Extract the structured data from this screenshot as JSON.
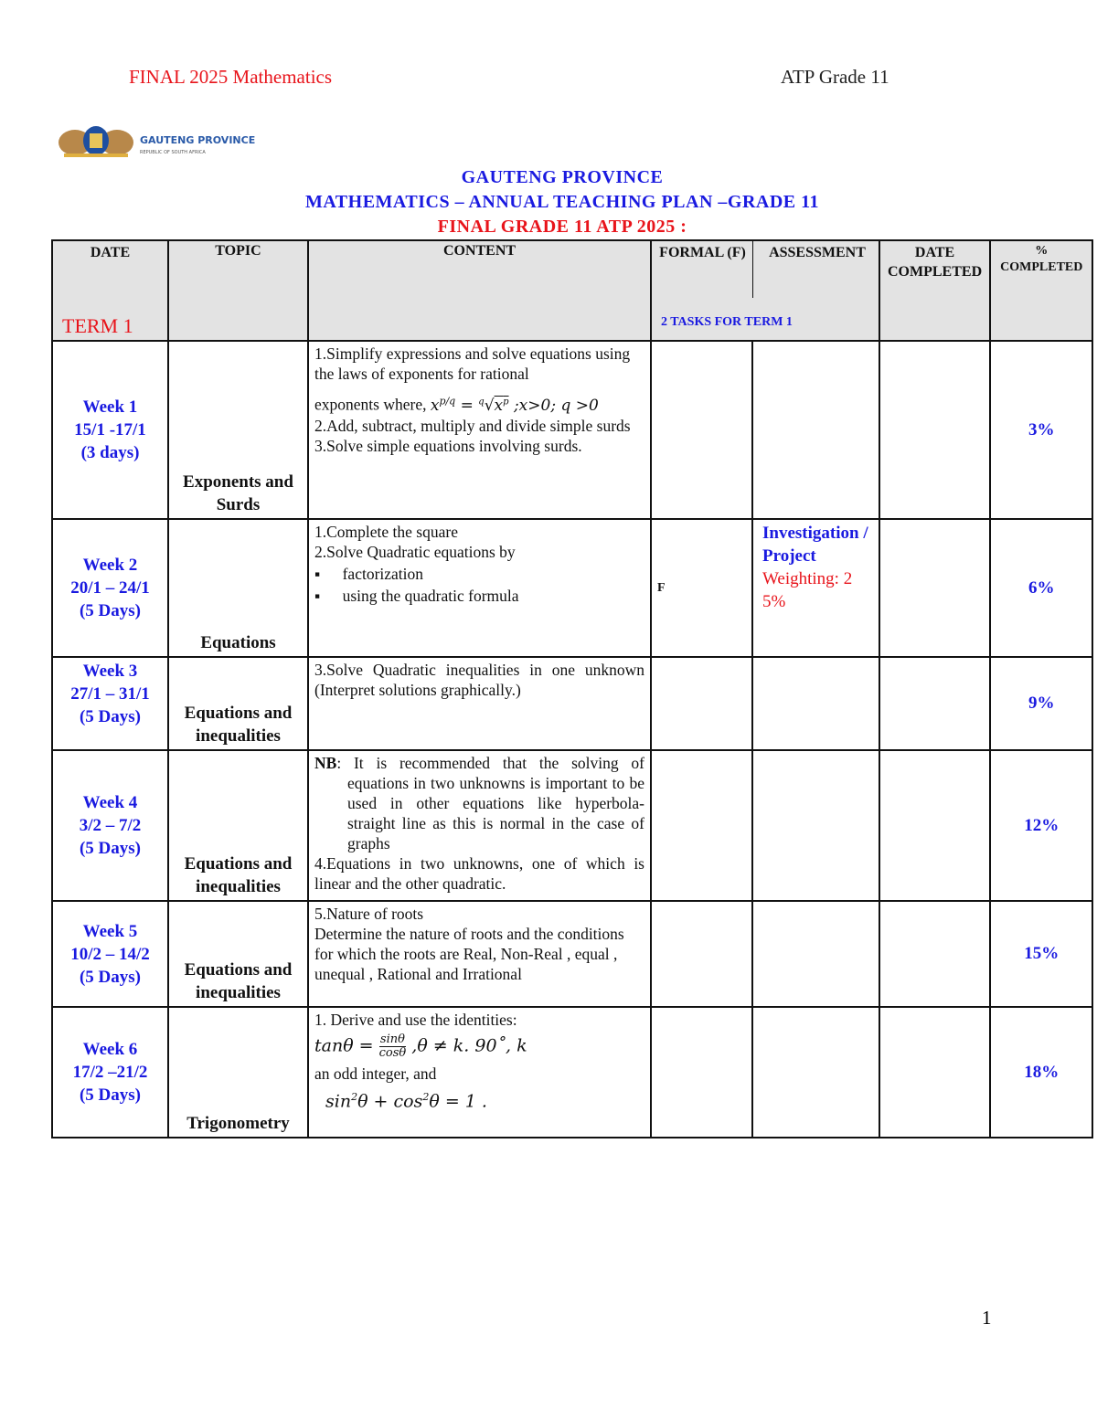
{
  "header": {
    "left": "FINAL  2025 Mathematics",
    "right": "ATP Grade 11"
  },
  "logo": {
    "text": "GAUTENG PROVINCE",
    "sub1": "EDUCATION",
    "sub2": "REPUBLIC OF SOUTH AFRICA"
  },
  "titles": {
    "line1": "GAUTENG  PROVINCE",
    "line2": "MATHEMATICS – ANNUAL TEACHING PLAN –GRADE 11",
    "line3": "FINAL GRADE 11 ATP 2025 :"
  },
  "colors": {
    "red": "#e8141b",
    "blue": "#1a1ae0",
    "header_bg": "#e3e3e3"
  },
  "table": {
    "headers": {
      "date": "DATE",
      "topic": "TOPIC",
      "content": "CONTENT",
      "formal": "FORMAL (F)",
      "assessment": "ASSESSMENT",
      "date_completed": "DATE COMPLETED",
      "pct": "% COMPLETED"
    },
    "term": "TERM  1",
    "tasks": "2 TASKS FOR TERM 1",
    "rows": [
      {
        "week": "Week 1",
        "dates": "15/1  -17/1",
        "days": "(3 days)",
        "topic": "Exponents and Surds",
        "content": [
          "1.Simplify expressions and solve equations using the laws of exponents for rational",
          "exponents  where,",
          "2.Add, subtract, multiply and divide simple surds",
          "3.Solve simple equations involving surds."
        ],
        "pct": "3%"
      },
      {
        "week": "Week 2",
        "dates": "20/1 – 24/1",
        "days": "(5 Days)",
        "topic": "Equations",
        "content": [
          "1.Complete the square",
          "2.Solve Quadratic equations by"
        ],
        "bullets": [
          "factorization",
          "using the quadratic formula"
        ],
        "formal": "F",
        "assessment": "Investigation / Project",
        "weighting": "Weighting: 25%",
        "pct": "6%"
      },
      {
        "week": "Week 3",
        "dates": "27/1 – 31/1",
        "days": "(5 Days)",
        "topic": "Equations and inequalities",
        "content": [
          "3.Solve  Quadratic  inequalities  in  one unknown (Interpret solutions graphically.)"
        ],
        "pct": "9%"
      },
      {
        "week": "Week 4",
        "dates": "3/2 – 7/2",
        "days": "(5 Days)",
        "topic": "Equations and inequalities",
        "nb": "NB",
        "content": [
          ": It is recommended that the solving of equations in two unknowns is important to be used in other equations like hyperbola-straight line as this is normal in the case of graphs",
          "4.Equations in two unknowns, one of which is linear and the other quadratic."
        ],
        "pct": "12%"
      },
      {
        "week": "Week 5",
        "dates": "10/2 – 14/2",
        "days": "(5 Days)",
        "topic": "Equations and inequalities",
        "content": [
          "5.Nature of roots",
          "Determine the nature of roots and the conditions for which the roots are Real, Non-Real , equal , unequal , Rational and Irrational"
        ],
        "pct": "15%"
      },
      {
        "week": "Week 6",
        "dates": "17/2 –21/2",
        "days": "(5 Days)",
        "topic": "Trigonometry",
        "content": [
          "1. Derive and use the identities:",
          "an odd integer,  and"
        ],
        "pct": "18%"
      }
    ]
  },
  "page_number": "1"
}
